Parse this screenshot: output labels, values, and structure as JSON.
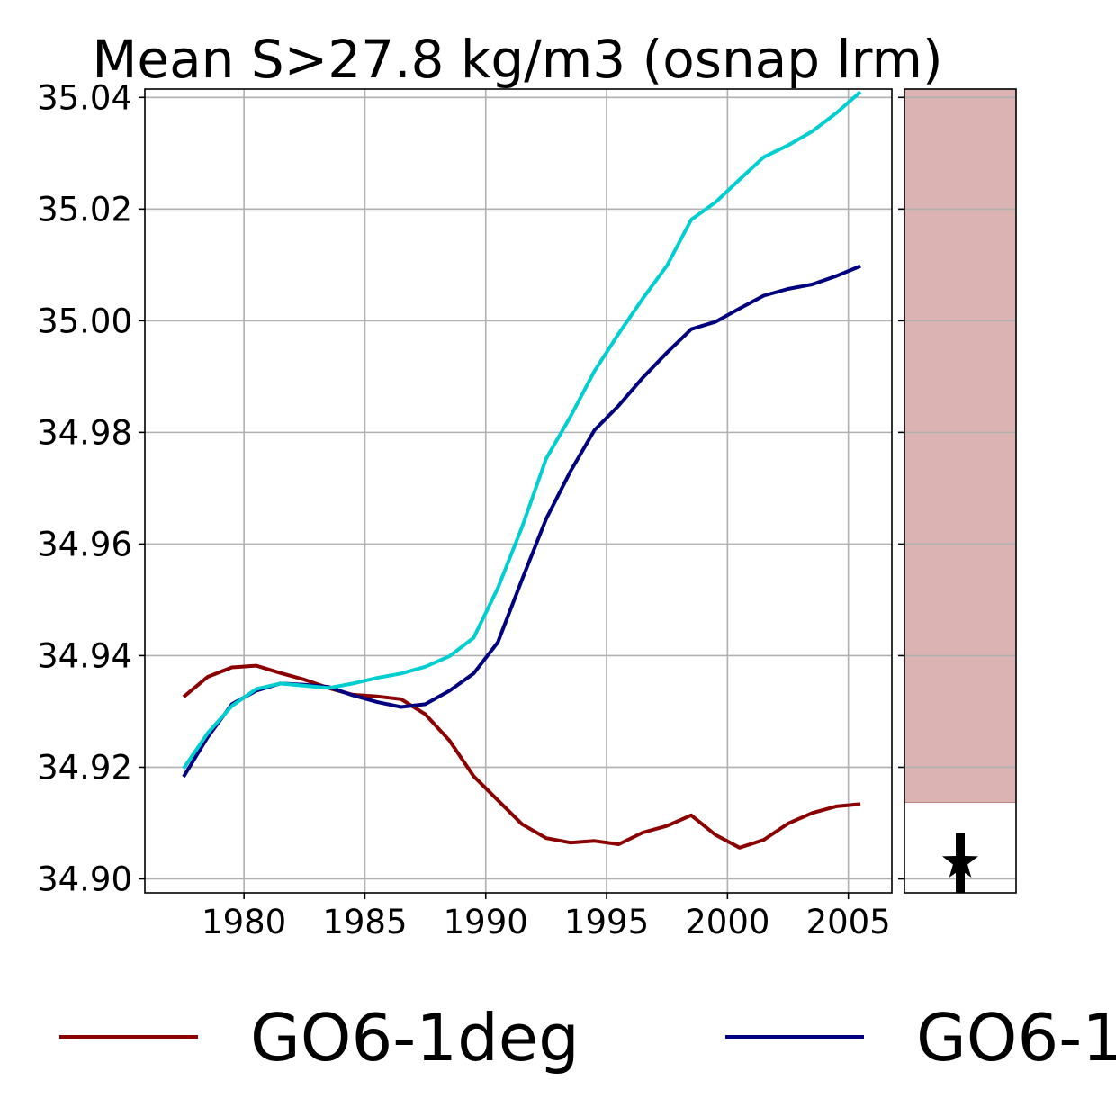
{
  "chart_data": {
    "type": "line",
    "title": "Mean S>27.8 kg/m3 (osnap lrm)",
    "xlabel": "",
    "ylabel": "",
    "xlim": [
      1975.9,
      2006.8
    ],
    "ylim": [
      34.8975,
      35.0415
    ],
    "xticks": [
      "1980",
      "1985",
      "1990",
      "1995",
      "2000",
      "2005"
    ],
    "yticks": [
      "34.90",
      "34.92",
      "34.94",
      "34.96",
      "34.98",
      "35.00",
      "35.02",
      "35.04"
    ],
    "grid": true,
    "legend_position": "bottom",
    "series": [
      {
        "name": "GO6-1deg",
        "color": "#8b0000",
        "x": [
          1977.5,
          1978.5,
          1979.5,
          1980.5,
          1981.5,
          1982.5,
          1983.5,
          1984.5,
          1985.5,
          1986.5,
          1987.5,
          1988.5,
          1989.5,
          1990.5,
          1991.5,
          1992.5,
          1993.5,
          1994.5,
          1995.5,
          1996.5,
          1997.5,
          1998.5,
          1999.5,
          2000.5,
          2001.5,
          2002.5,
          2003.5,
          2004.5,
          2005.5
        ],
        "values": [
          34.9326,
          34.9362,
          34.9379,
          34.9382,
          34.9369,
          34.9357,
          34.9342,
          34.933,
          34.9327,
          34.9322,
          34.9295,
          34.9248,
          34.9184,
          34.9141,
          34.9098,
          34.9073,
          34.9065,
          34.9068,
          34.9062,
          34.9083,
          34.9095,
          34.9114,
          34.9079,
          34.9056,
          34.907,
          34.9099,
          34.9118,
          34.913,
          34.9134
        ]
      },
      {
        "name": "GO6-1",
        "color": "#00007f",
        "x": [
          1977.5,
          1978.5,
          1979.5,
          1980.5,
          1981.5,
          1982.5,
          1983.5,
          1984.5,
          1985.5,
          1986.5,
          1987.5,
          1988.5,
          1989.5,
          1990.5,
          1991.5,
          1992.5,
          1993.5,
          1994.5,
          1995.5,
          1996.5,
          1997.5,
          1998.5,
          1999.5,
          2000.5,
          2001.5,
          2002.5,
          2003.5,
          2004.5,
          2005.5
        ],
        "values": [
          34.9183,
          34.9254,
          34.9313,
          34.9337,
          34.935,
          34.9348,
          34.9344,
          34.9329,
          34.9317,
          34.9308,
          34.9313,
          34.9337,
          34.9368,
          34.9424,
          34.9536,
          34.9645,
          34.973,
          34.9804,
          34.9848,
          34.9898,
          34.9943,
          34.9985,
          34.9998,
          35.0022,
          35.0045,
          35.0057,
          35.0065,
          35.008,
          35.0098
        ]
      },
      {
        "name": "",
        "color": "#00ced1",
        "x": [
          1977.5,
          1978.5,
          1979.5,
          1980.5,
          1981.5,
          1982.5,
          1983.5,
          1984.5,
          1985.5,
          1986.5,
          1987.5,
          1988.5,
          1989.5,
          1990.5,
          1991.5,
          1992.5,
          1993.5,
          1994.5,
          1995.5,
          1996.5,
          1997.5,
          1998.5,
          1999.5,
          2000.5,
          2001.5,
          2002.5,
          2003.5,
          2004.5,
          2005.5
        ],
        "values": [
          34.9198,
          34.9261,
          34.931,
          34.934,
          34.935,
          34.9346,
          34.9342,
          34.935,
          34.936,
          34.9368,
          34.938,
          34.9399,
          34.9432,
          34.9521,
          34.963,
          34.9753,
          34.9828,
          34.991,
          34.9977,
          35.004,
          35.0099,
          35.0181,
          35.0212,
          35.0253,
          35.0293,
          35.0314,
          35.0339,
          35.0372,
          35.041
        ]
      }
    ],
    "side_panel": {
      "shaded_range": [
        34.9137,
        35.0415
      ],
      "shade_color": "#dbb3b3",
      "marker": "star",
      "marker_value": 34.903,
      "bar_range": [
        34.8975,
        34.9082
      ]
    }
  }
}
